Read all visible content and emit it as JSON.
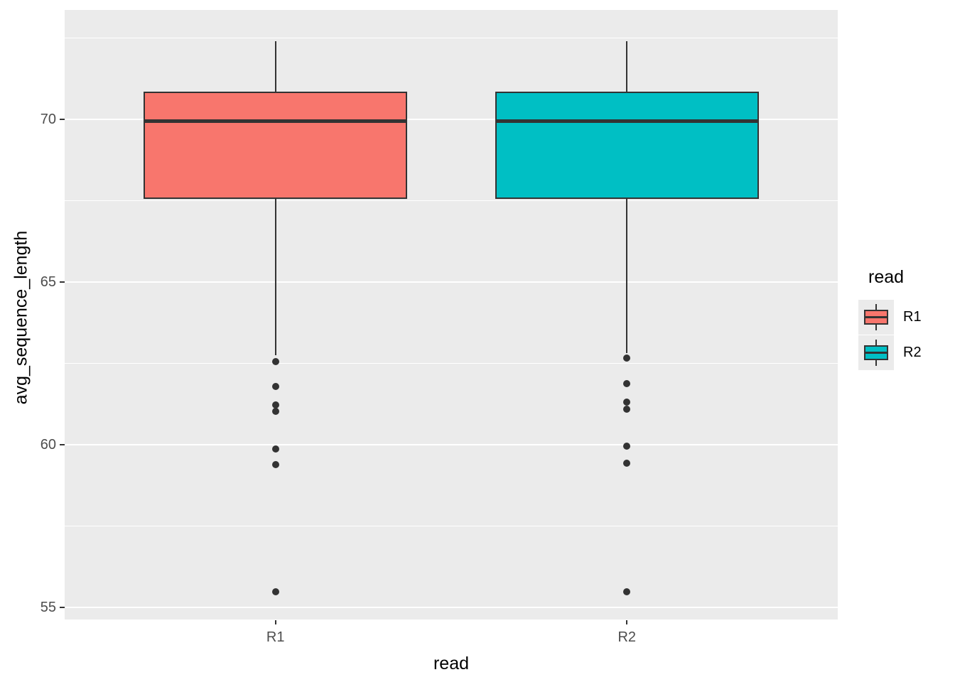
{
  "chart_data": {
    "type": "boxplot",
    "title": "",
    "xlabel": "read",
    "ylabel": "avg_sequence_length",
    "x_tick_labels": [
      "R1",
      "R2"
    ],
    "x_positions": [
      1,
      2
    ],
    "xlim": [
      0.4,
      2.6
    ],
    "y_ticks": [
      55,
      60,
      65,
      70
    ],
    "y_minor_ticks": [
      57.5,
      62.5,
      67.5,
      72.5
    ],
    "ylim": [
      54.63,
      73.36
    ],
    "box_width_units": 0.75,
    "grid_on": true,
    "legend_position": "right",
    "series": [
      {
        "name": "R1",
        "fill": "#F8766D",
        "whisker_low": 62.75,
        "q1": 67.56,
        "median": 69.95,
        "q3": 70.86,
        "whisker_high": 72.41,
        "outliers": [
          62.55,
          61.79,
          61.22,
          61.03,
          59.86,
          59.39,
          55.49
        ]
      },
      {
        "name": "R2",
        "fill": "#00BFC4",
        "whisker_low": 62.82,
        "q1": 67.55,
        "median": 69.95,
        "q3": 70.84,
        "whisker_high": 72.41,
        "outliers": [
          62.66,
          61.88,
          61.31,
          61.09,
          59.96,
          59.44,
          55.48
        ]
      }
    ],
    "legend": {
      "title": "read",
      "entries": [
        {
          "label": "R1",
          "color": "#F8766D"
        },
        {
          "label": "R2",
          "color": "#00BFC4"
        }
      ]
    },
    "colors": {
      "panel_background": "#EBEBEB",
      "gridline": "#FFFFFF",
      "box_border": "#333333",
      "median_line": "#333333",
      "outlier_dot": "#333333",
      "tick_text": "#4D4D4D",
      "axis_title_text": "#000000",
      "tick_mark": "#333333",
      "legend_key_background": "#EBEBEB"
    }
  }
}
